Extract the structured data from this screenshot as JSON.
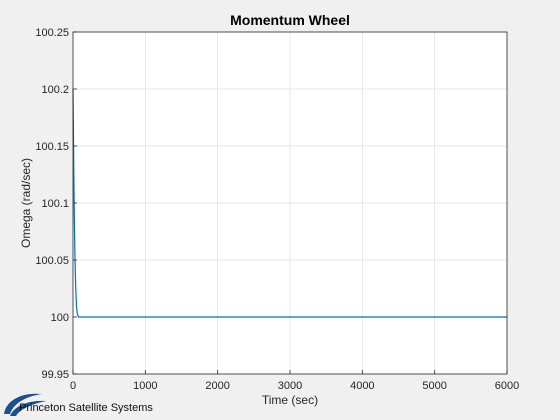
{
  "chart_data": {
    "type": "line",
    "title": "Momentum Wheel",
    "xlabel": "Time (sec)",
    "ylabel": "Omega (rad/sec)",
    "xlim": [
      0,
      6000
    ],
    "ylim": [
      99.95,
      100.25
    ],
    "xticks": [
      0,
      1000,
      2000,
      3000,
      4000,
      5000,
      6000
    ],
    "yticks": [
      99.95,
      100,
      100.05,
      100.1,
      100.15,
      100.2,
      100.25
    ],
    "xtick_labels": [
      "0",
      "1000",
      "2000",
      "3000",
      "4000",
      "5000",
      "6000"
    ],
    "ytick_labels": [
      "99.95",
      "100",
      "100.05",
      "100.1",
      "100.15",
      "100.2",
      "100.25"
    ],
    "grid": true,
    "series": [
      {
        "color": "#0072bd",
        "x": [
          0,
          5,
          10,
          15,
          20,
          25,
          30,
          35,
          40,
          45,
          50,
          60,
          70,
          80,
          100,
          150,
          200,
          500,
          1000,
          2000,
          3000,
          4000,
          5000,
          6000
        ],
        "y": [
          100.2,
          100.17,
          100.135,
          100.105,
          100.08,
          100.06,
          100.045,
          100.032,
          100.022,
          100.014,
          100.008,
          100.003,
          100.001,
          100.0,
          100.0,
          100.0,
          100.0,
          100.0,
          100.0,
          100.0,
          100.0,
          100.0,
          100.0,
          100.0
        ]
      }
    ]
  },
  "footer": {
    "brand_text": "Princeton Satellite Systems",
    "logo_color": "#1c4f8c"
  }
}
